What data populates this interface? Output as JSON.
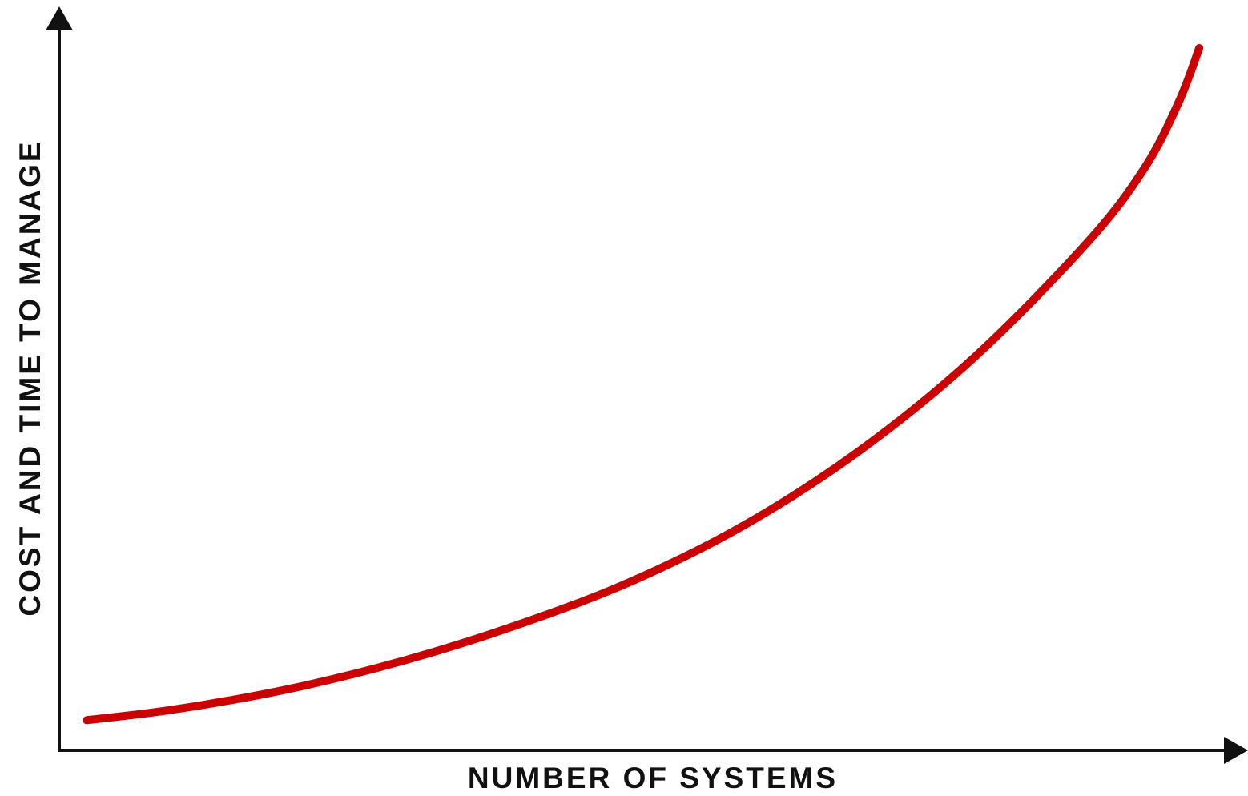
{
  "chart_data": {
    "type": "line",
    "title": "",
    "xlabel": "NUMBER OF SYSTEMS",
    "ylabel": "COST AND TIME TO MANAGE",
    "xlim": [
      0,
      100
    ],
    "ylim": [
      0,
      100
    ],
    "grid": false,
    "legend": "none",
    "tick_labels": false,
    "series": [
      {
        "color": "#cc0000",
        "x": [
          2.4,
          10,
          20,
          30,
          40,
          50,
          60,
          70,
          80,
          90,
          95,
          98,
          99.8
        ],
        "y": [
          4.3,
          5.8,
          8.7,
          12.7,
          17.8,
          24.0,
          32.1,
          42.6,
          55.8,
          72.3,
          82.9,
          92.3,
          100.0
        ]
      }
    ],
    "colors": {
      "axis": "#111111",
      "curve": "#cc0000",
      "background": "#ffffff"
    }
  }
}
